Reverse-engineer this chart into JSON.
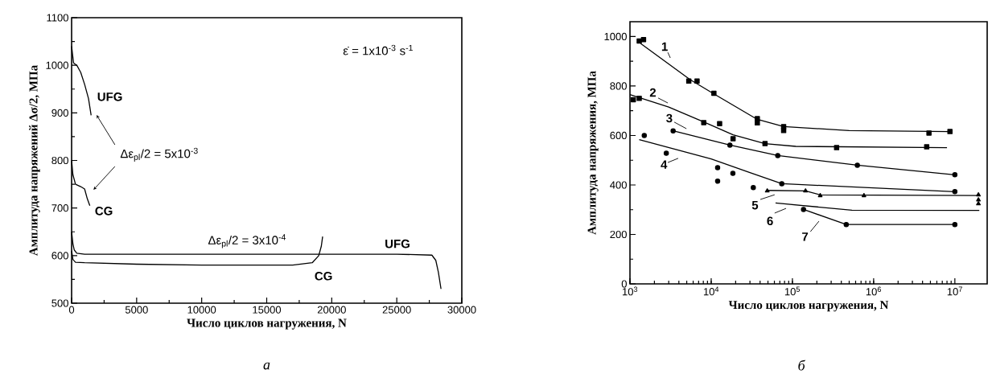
{
  "chart_data": [
    {
      "type": "line",
      "legend": "left",
      "xlabel": "Число циклов нагружения, N",
      "ylabel": "Амплитуда напряжений Δσ/2, МПа",
      "xlim": [
        0,
        30000
      ],
      "ylim": [
        500,
        1100
      ],
      "xticks": [
        0,
        5000,
        10000,
        15000,
        20000,
        25000,
        30000
      ],
      "yticks": [
        500,
        600,
        700,
        800,
        900,
        1000,
        1100
      ],
      "series": [
        {
          "name": "UFG",
          "color": "#000000",
          "x": [
            0,
            150,
            400,
            700,
            1000,
            1300,
            1500
          ],
          "values": [
            1040,
            1005,
            1000,
            985,
            960,
            930,
            895
          ]
        },
        {
          "name": "CG",
          "color": "#000000",
          "x": [
            0,
            100,
            300,
            700,
            1000,
            1200,
            1400
          ],
          "values": [
            800,
            770,
            750,
            745,
            740,
            720,
            705
          ]
        },
        {
          "name": "UFG",
          "color": "#000000",
          "x": [
            0,
            100,
            200,
            400,
            1000,
            5000,
            15000,
            25000,
            27700,
            28000,
            28200,
            28400
          ],
          "values": [
            650,
            625,
            612,
            605,
            603,
            603,
            603,
            603,
            601,
            590,
            565,
            530
          ]
        },
        {
          "name": "CG",
          "color": "#000000",
          "x": [
            0,
            100,
            300,
            1000,
            5000,
            10000,
            17000,
            18500,
            19000,
            19200,
            19300
          ],
          "values": [
            610,
            592,
            586,
            585,
            582,
            580,
            580,
            585,
            600,
            620,
            640
          ]
        }
      ],
      "annotations": [
        "Δε$_{pl}$/2 = 5x10$^{-3}$",
        "Δε$_{pl}$/2 = 3x10$^{-4}$",
        "ε̇ = 1x10$^{-3}$ s$^{-1}$",
        "а"
      ]
    },
    {
      "type": "line",
      "legend": "left",
      "xlabel": "Число циклов нагружения, N",
      "ylabel": "Амплитуда напряжения, МПа",
      "log": "x",
      "xlim": [
        1000,
        25000000
      ],
      "ylim": [
        0,
        1060
      ],
      "xticks": [
        {
          "value": 1000,
          "label": "10$^{3}$"
        },
        {
          "value": 10000,
          "label": "10$^{4}$"
        },
        {
          "value": 100000,
          "label": "10$^{5}$"
        },
        {
          "value": 1000000,
          "label": "10$^{6}$"
        },
        {
          "value": 10000000,
          "label": "10$^{7}$"
        }
      ],
      "yticks": [
        0,
        200,
        400,
        600,
        800,
        1000
      ],
      "series": [
        {
          "name": "1",
          "type": "line",
          "color": "#000000",
          "x": [
            1350,
            5500,
            10800,
            37000,
            78000,
            500000,
            8700000
          ],
          "values": [
            972,
            826,
            768,
            665,
            636,
            620,
            616
          ]
        },
        {
          "name": "2",
          "type": "line",
          "color": "#000000",
          "x": [
            1000,
            3000,
            8100,
            18600,
            46000,
            110000,
            8000000
          ],
          "values": [
            765,
            715,
            655,
            603,
            567,
            556,
            551
          ]
        },
        {
          "name": "3",
          "type": "line",
          "color": "#000000",
          "x": [
            3400,
            17000,
            66000,
            630000,
            10000000
          ],
          "values": [
            619,
            561,
            519,
            480,
            441
          ]
        },
        {
          "name": "4",
          "type": "line",
          "color": "#000000",
          "x": [
            1300,
            10000,
            30000,
            74000,
            10000000
          ],
          "values": [
            583,
            505,
            450,
            405,
            373
          ]
        },
        {
          "name": "5",
          "type": "line",
          "color": "#000000",
          "x": [
            48000,
            145000,
            220000,
            20000000
          ],
          "values": [
            378,
            376,
            360,
            357
          ]
        },
        {
          "name": "6",
          "type": "line",
          "color": "#000000",
          "x": [
            62000,
            540000,
            20000000
          ],
          "values": [
            327,
            298,
            297
          ]
        },
        {
          "name": "7",
          "type": "line",
          "color": "#000000",
          "x": [
            137000,
            460000,
            10000000
          ],
          "values": [
            301,
            240,
            240
          ]
        },
        {
          "type": "scatter",
          "marker": "square",
          "color": "#000000",
          "x": [
            1300,
            1470,
            5300,
            6700,
            10800,
            37000,
            37000,
            78000,
            78000,
            4800000,
            8700000
          ],
          "values": [
            982,
            988,
            820,
            820,
            771,
            668,
            651,
            636,
            620,
            610,
            616
          ]
        },
        {
          "type": "scatter",
          "marker": "square",
          "color": "#000000",
          "x": [
            1100,
            1300,
            8100,
            12700,
            18600,
            46000,
            350000,
            4500000
          ],
          "values": [
            745,
            750,
            652,
            648,
            587,
            567,
            551,
            554
          ]
        },
        {
          "type": "scatter",
          "marker": "circle",
          "color": "#000000",
          "x": [
            3400,
            17000,
            66000,
            630000,
            10000000
          ],
          "values": [
            619,
            561,
            519,
            480,
            441
          ]
        },
        {
          "type": "scatter",
          "marker": "circle",
          "color": "#000000",
          "x": [
            1500,
            2800,
            12000,
            12000,
            18500,
            33000,
            74000,
            10000000
          ],
          "values": [
            600,
            528,
            470,
            415,
            447,
            389,
            405,
            373
          ]
        },
        {
          "type": "scatter",
          "marker": "triangle",
          "color": "#000000",
          "x": [
            49000,
            145000,
            220000,
            760000,
            19500000,
            19500000,
            19500000
          ],
          "values": [
            376,
            376,
            357,
            357,
            360,
            340,
            324
          ]
        },
        {
          "type": "scatter",
          "marker": "circle",
          "color": "#000000",
          "x": [
            137000,
            460000,
            10000000
          ],
          "values": [
            301,
            240,
            240
          ]
        }
      ],
      "annotations": [
        "б"
      ]
    }
  ]
}
